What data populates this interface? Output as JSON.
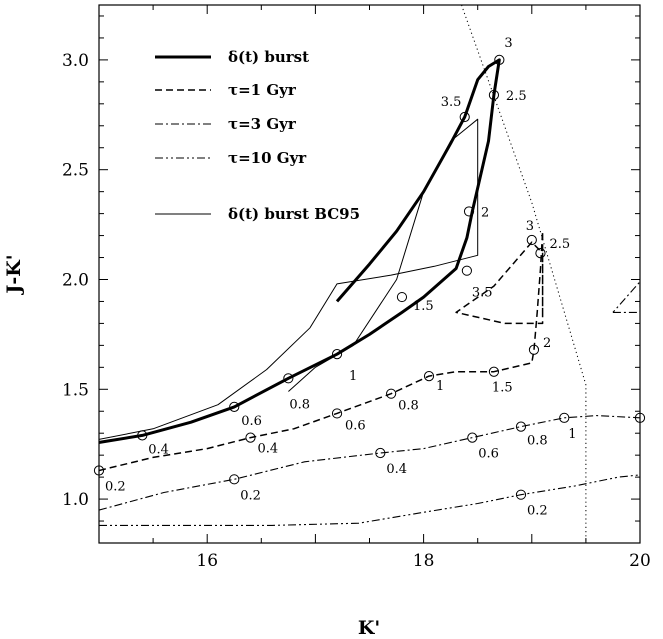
{
  "chart_data": {
    "type": "line",
    "xlabel": "K'",
    "ylabel": "J-K'",
    "xlim": [
      15,
      20
    ],
    "ylim": [
      0.8,
      3.25
    ],
    "x_ticks": [
      16,
      18,
      20
    ],
    "y_ticks": [
      1.0,
      1.5,
      2.0,
      2.5,
      3.0
    ],
    "x_tick_labels": [
      "16",
      "18",
      "20"
    ],
    "y_tick_labels": [
      "1.0",
      "1.5",
      "2.0",
      "2.5",
      "3.0"
    ],
    "grid": false,
    "legend_position": "top-left",
    "series": [
      {
        "name": "δ(t) burst",
        "style": "thick-solid",
        "points": [
          [
            14.9,
            1.25
          ],
          [
            15.4,
            1.29
          ],
          [
            15.85,
            1.35
          ],
          [
            16.25,
            1.42
          ],
          [
            16.75,
            1.55
          ],
          [
            17.2,
            1.66
          ],
          [
            17.5,
            1.75
          ],
          [
            17.8,
            1.85
          ],
          [
            18.0,
            1.92
          ],
          [
            18.3,
            2.05
          ],
          [
            18.4,
            2.19
          ],
          [
            18.45,
            2.31
          ],
          [
            18.6,
            2.63
          ],
          [
            18.65,
            2.84
          ],
          [
            18.7,
            3.0
          ],
          [
            18.6,
            2.97
          ],
          [
            18.5,
            2.91
          ],
          [
            18.38,
            2.74
          ],
          [
            18.25,
            2.62
          ],
          [
            18.0,
            2.4
          ],
          [
            17.75,
            2.22
          ],
          [
            17.5,
            2.07
          ],
          [
            17.2,
            1.9
          ]
        ],
        "markers": [
          [
            15.4,
            1.29
          ],
          [
            16.25,
            1.42
          ],
          [
            16.75,
            1.55
          ],
          [
            17.2,
            1.66
          ],
          [
            17.8,
            1.92
          ],
          [
            18.42,
            2.31
          ],
          [
            18.65,
            2.84
          ],
          [
            18.7,
            3.0
          ],
          [
            18.38,
            2.74
          ]
        ]
      },
      {
        "name": "τ=1 Gyr",
        "style": "dashed",
        "points": [
          [
            15.0,
            1.13
          ],
          [
            15.5,
            1.19
          ],
          [
            16.0,
            1.23
          ],
          [
            16.4,
            1.28
          ],
          [
            16.8,
            1.32
          ],
          [
            17.2,
            1.39
          ],
          [
            17.7,
            1.48
          ],
          [
            18.05,
            1.56
          ],
          [
            18.3,
            1.58
          ],
          [
            18.65,
            1.58
          ],
          [
            19.0,
            1.62
          ],
          [
            19.02,
            1.68
          ],
          [
            19.05,
            1.85
          ],
          [
            19.08,
            2.05
          ],
          [
            19.1,
            2.22
          ],
          [
            19.1,
            1.8
          ],
          [
            18.75,
            1.8
          ],
          [
            18.3,
            1.85
          ],
          [
            18.65,
            1.97
          ],
          [
            19.0,
            2.17
          ],
          [
            19.1,
            2.12
          ],
          [
            19.1,
            1.85
          ]
        ],
        "markers": [
          [
            15.0,
            1.13
          ],
          [
            16.4,
            1.28
          ],
          [
            17.2,
            1.39
          ],
          [
            17.7,
            1.48
          ],
          [
            18.05,
            1.56
          ],
          [
            18.65,
            1.58
          ],
          [
            19.02,
            1.68
          ],
          [
            18.4,
            2.04
          ],
          [
            19.0,
            2.18
          ],
          [
            19.08,
            2.12
          ]
        ]
      },
      {
        "name": "τ=3 Gyr",
        "style": "dash-dot",
        "points": [
          [
            15.0,
            0.95
          ],
          [
            15.6,
            1.03
          ],
          [
            16.25,
            1.09
          ],
          [
            16.9,
            1.17
          ],
          [
            17.6,
            1.21
          ],
          [
            18.0,
            1.23
          ],
          [
            18.45,
            1.28
          ],
          [
            18.9,
            1.33
          ],
          [
            19.3,
            1.37
          ],
          [
            19.6,
            1.38
          ],
          [
            20.0,
            1.37
          ]
        ],
        "markers": [
          [
            16.25,
            1.09
          ],
          [
            17.6,
            1.21
          ],
          [
            18.45,
            1.28
          ],
          [
            18.9,
            1.33
          ],
          [
            19.3,
            1.37
          ],
          [
            20.0,
            1.37
          ]
        ]
      },
      {
        "name": "τ=10 Gyr",
        "style": "dash-dot-dot",
        "points": [
          [
            15.0,
            0.88
          ],
          [
            15.8,
            0.88
          ],
          [
            16.6,
            0.88
          ],
          [
            17.4,
            0.89
          ],
          [
            18.0,
            0.94
          ],
          [
            18.5,
            0.98
          ],
          [
            18.9,
            1.02
          ],
          [
            19.4,
            1.06
          ],
          [
            19.8,
            1.1
          ],
          [
            20.0,
            1.11
          ]
        ],
        "markers": [
          [
            18.9,
            1.02
          ]
        ]
      },
      {
        "name": "δ(t) burst BC95",
        "style": "thin-solid",
        "points": [
          [
            14.98,
            1.27
          ],
          [
            15.5,
            1.32
          ],
          [
            16.1,
            1.43
          ],
          [
            16.55,
            1.59
          ],
          [
            16.95,
            1.78
          ],
          [
            17.2,
            1.98
          ],
          [
            17.7,
            2.02
          ],
          [
            18.1,
            2.06
          ],
          [
            18.5,
            2.11
          ],
          [
            18.5,
            2.73
          ],
          [
            18.25,
            2.63
          ],
          [
            18.0,
            2.4
          ],
          [
            17.75,
            2.0
          ],
          [
            17.35,
            1.7
          ],
          [
            17.0,
            1.6
          ],
          [
            16.75,
            1.49
          ]
        ],
        "markers": []
      },
      {
        "name": "",
        "style": "dotted",
        "points": [
          [
            18.35,
            3.25
          ],
          [
            19.0,
            2.35
          ],
          [
            19.5,
            1.52
          ],
          [
            19.5,
            0.8
          ]
        ],
        "markers": []
      },
      {
        "name": "",
        "style": "dash-dot",
        "points": [
          [
            19.75,
            1.85
          ],
          [
            20.0,
            1.85
          ],
          [
            20.0,
            1.99
          ],
          [
            19.75,
            1.85
          ]
        ],
        "markers": []
      }
    ],
    "age_labels": [
      {
        "text": "0.2",
        "x": 15.0,
        "y": 1.13,
        "dx": 6,
        "dy": 20
      },
      {
        "text": "0.4",
        "x": 15.4,
        "y": 1.29,
        "dx": 6,
        "dy": 18
      },
      {
        "text": "0.6",
        "x": 16.25,
        "y": 1.42,
        "dx": 7,
        "dy": 18
      },
      {
        "text": "0.8",
        "x": 16.75,
        "y": 1.55,
        "dx": 1,
        "dy": 30
      },
      {
        "text": "1",
        "x": 17.2,
        "y": 1.66,
        "dx": 12,
        "dy": 26
      },
      {
        "text": "1.5",
        "x": 17.8,
        "y": 1.92,
        "dx": 11,
        "dy": 13
      },
      {
        "text": "2",
        "x": 18.42,
        "y": 2.31,
        "dx": 12,
        "dy": 5
      },
      {
        "text": "2.5",
        "x": 18.65,
        "y": 2.84,
        "dx": 12,
        "dy": 5
      },
      {
        "text": "3",
        "x": 18.7,
        "y": 3.0,
        "dx": 5,
        "dy": -13
      },
      {
        "text": "3.5",
        "x": 18.38,
        "y": 2.74,
        "dx": -24,
        "dy": -11
      },
      {
        "text": "0.4",
        "x": 16.4,
        "y": 1.28,
        "dx": 7,
        "dy": 15
      },
      {
        "text": "0.6",
        "x": 17.2,
        "y": 1.39,
        "dx": 8,
        "dy": 16
      },
      {
        "text": "0.8",
        "x": 17.7,
        "y": 1.48,
        "dx": 7,
        "dy": 16
      },
      {
        "text": "1",
        "x": 18.05,
        "y": 1.56,
        "dx": 7,
        "dy": 14
      },
      {
        "text": "1.5",
        "x": 18.65,
        "y": 1.58,
        "dx": -2,
        "dy": 20
      },
      {
        "text": "2",
        "x": 19.02,
        "y": 1.68,
        "dx": 9,
        "dy": -3
      },
      {
        "text": "2.5",
        "x": 19.08,
        "y": 2.12,
        "dx": 9,
        "dy": -5
      },
      {
        "text": "3",
        "x": 19.0,
        "y": 2.18,
        "dx": -6,
        "dy": -10
      },
      {
        "text": "3.5",
        "x": 18.4,
        "y": 2.04,
        "dx": 5,
        "dy": 26
      },
      {
        "text": "0.2",
        "x": 16.25,
        "y": 1.09,
        "dx": 6,
        "dy": 20
      },
      {
        "text": "0.4",
        "x": 17.6,
        "y": 1.21,
        "dx": 6,
        "dy": 20
      },
      {
        "text": "0.6",
        "x": 18.45,
        "y": 1.28,
        "dx": 6,
        "dy": 20
      },
      {
        "text": "0.8",
        "x": 18.9,
        "y": 1.33,
        "dx": 6,
        "dy": 18
      },
      {
        "text": "1",
        "x": 19.3,
        "y": 1.37,
        "dx": 4,
        "dy": 20
      },
      {
        "text": "0.2",
        "x": 18.9,
        "y": 1.02,
        "dx": 6,
        "dy": 20
      }
    ]
  }
}
